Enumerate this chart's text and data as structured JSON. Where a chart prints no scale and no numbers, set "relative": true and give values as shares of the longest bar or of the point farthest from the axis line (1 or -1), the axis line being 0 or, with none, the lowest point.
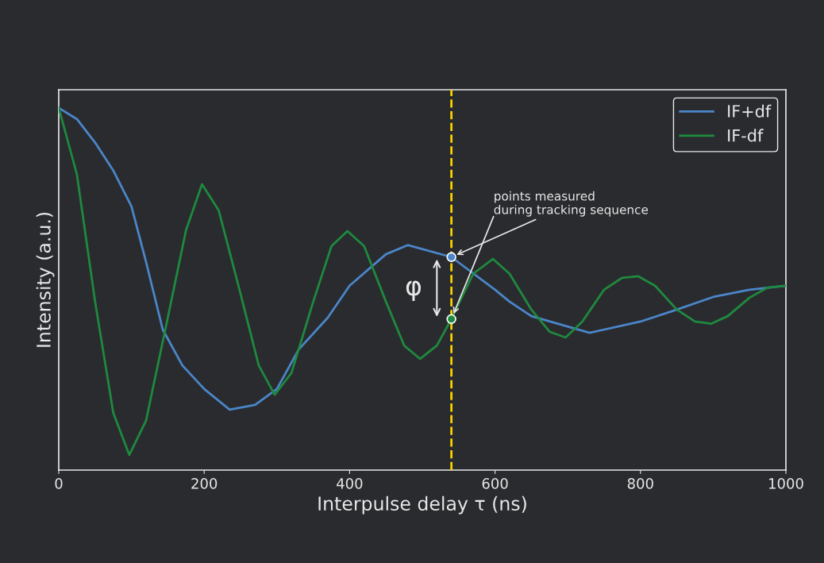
{
  "chart_data": {
    "type": "line",
    "xlabel": "Interpulse delay τ (ns)",
    "ylabel": "Intensity (a.u.)",
    "relative": true,
    "xlim": [
      0,
      1000
    ],
    "xticks": [
      0,
      200,
      400,
      600,
      800,
      1000
    ],
    "grid": false,
    "legend": "top right",
    "tick_labels": "x",
    "series": [
      {
        "name": "IF+df",
        "color": "#4a86c8",
        "x": [
          0,
          25,
          50,
          75,
          100,
          120,
          143,
          170,
          200,
          235,
          270,
          300,
          330,
          370,
          400,
          450,
          480,
          540,
          600,
          620,
          650,
          730,
          800,
          850,
          900,
          950,
          1000
        ],
        "values": [
          1.0,
          0.969,
          0.904,
          0.827,
          0.728,
          0.575,
          0.388,
          0.289,
          0.224,
          0.167,
          0.18,
          0.224,
          0.333,
          0.421,
          0.509,
          0.596,
          0.621,
          0.588,
          0.498,
          0.465,
          0.425,
          0.379,
          0.41,
          0.443,
          0.478,
          0.498,
          0.509
        ]
      },
      {
        "name": "IF-df",
        "color": "#1e8a3e",
        "x": [
          0,
          25,
          50,
          75,
          97,
          120,
          150,
          175,
          197,
          220,
          250,
          275,
          297,
          320,
          350,
          375,
          397,
          420,
          450,
          475,
          497,
          520,
          540,
          570,
          597,
          620,
          650,
          675,
          697,
          720,
          750,
          775,
          797,
          820,
          850,
          875,
          897,
          920,
          950,
          975,
          1000
        ],
        "values": [
          1.0,
          0.816,
          0.465,
          0.158,
          0.042,
          0.136,
          0.421,
          0.662,
          0.789,
          0.717,
          0.487,
          0.289,
          0.208,
          0.268,
          0.465,
          0.618,
          0.66,
          0.618,
          0.465,
          0.344,
          0.307,
          0.344,
          0.417,
          0.542,
          0.583,
          0.542,
          0.443,
          0.382,
          0.366,
          0.41,
          0.498,
          0.531,
          0.535,
          0.509,
          0.443,
          0.41,
          0.404,
          0.425,
          0.476,
          0.504,
          0.509
        ]
      },
      {
        "type": "scatter",
        "x": [
          540,
          540
        ],
        "values": [
          0.588,
          0.417
        ],
        "colors": [
          "#4a86c8",
          "#1e8a3e"
        ],
        "marker": "circle"
      }
    ],
    "ref_lines": [
      {
        "axis": "x",
        "value": 540,
        "color": "#f5d000",
        "line_style": "dashed"
      }
    ],
    "annotations": [
      "points measured\nduring tracking sequence",
      "φ"
    ]
  }
}
